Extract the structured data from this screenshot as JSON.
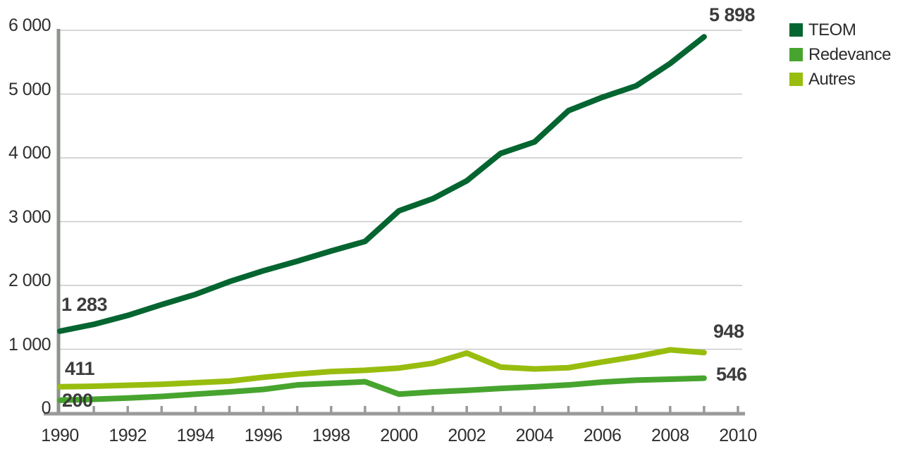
{
  "chart_data": {
    "type": "line",
    "unit_note": "values read from axis scale 0-6000",
    "x": [
      1990,
      1991,
      1992,
      1993,
      1994,
      1995,
      1996,
      1997,
      1998,
      1999,
      2000,
      2001,
      2002,
      2003,
      2004,
      2005,
      2006,
      2007,
      2008,
      2009
    ],
    "x_axis": {
      "range": [
        1990,
        2010
      ],
      "labels": [
        "1990",
        "1992",
        "1994",
        "1996",
        "1998",
        "2000",
        "2002",
        "2004",
        "2006",
        "2008",
        "2010"
      ],
      "label_years": [
        1990,
        1992,
        1994,
        1996,
        1998,
        2000,
        2002,
        2004,
        2006,
        2008,
        2010
      ],
      "minor_tick_years_start": 1991,
      "minor_tick_years_end": 2010
    },
    "y_axis": {
      "range": [
        0,
        6000
      ],
      "tick_step": 1000,
      "labels": [
        "0",
        "1 000",
        "2 000",
        "3 000",
        "4 000",
        "5 000",
        "6 000"
      ],
      "tick_values": [
        0,
        1000,
        2000,
        3000,
        4000,
        5000,
        6000
      ],
      "grid_values": [
        1000,
        2000,
        3000,
        4000,
        5000,
        6000
      ]
    },
    "grid": "horizontal",
    "series": [
      {
        "name": "TEOM",
        "color": "#046530",
        "values": [
          1283,
          1390,
          1530,
          1700,
          1860,
          2060,
          2230,
          2380,
          2540,
          2690,
          3170,
          3360,
          3640,
          4070,
          4250,
          4740,
          4950,
          5130,
          5480,
          5898
        ]
      },
      {
        "name": "Redevance",
        "color": "#47a42e",
        "values": [
          200,
          215,
          235,
          260,
          295,
          330,
          370,
          440,
          465,
          490,
          295,
          330,
          355,
          385,
          410,
          440,
          485,
          515,
          530,
          546
        ]
      },
      {
        "name": "Autres",
        "color": "#98bd0e",
        "values": [
          411,
          420,
          435,
          450,
          475,
          500,
          560,
          610,
          650,
          670,
          705,
          780,
          940,
          720,
          690,
          710,
          800,
          885,
          990,
          948
        ]
      }
    ],
    "annotations": [
      {
        "series": "TEOM",
        "year": 1990,
        "text": "1 283"
      },
      {
        "series": "TEOM",
        "year": 2009,
        "text": "5 898"
      },
      {
        "series": "Autres",
        "year": 1990,
        "text": "411"
      },
      {
        "series": "Autres",
        "year": 2009,
        "text": "948"
      },
      {
        "series": "Redevance",
        "year": 1990,
        "text": "200"
      },
      {
        "series": "Redevance",
        "year": 2009,
        "text": "546"
      }
    ],
    "legend": {
      "position": "top-right",
      "entries": [
        "TEOM",
        "Redevance",
        "Autres"
      ]
    },
    "colors": {
      "gridline": "#c9c9c9",
      "axis": "#8e938e",
      "tick": "#999999",
      "label_text": "#3c3c3c"
    }
  }
}
